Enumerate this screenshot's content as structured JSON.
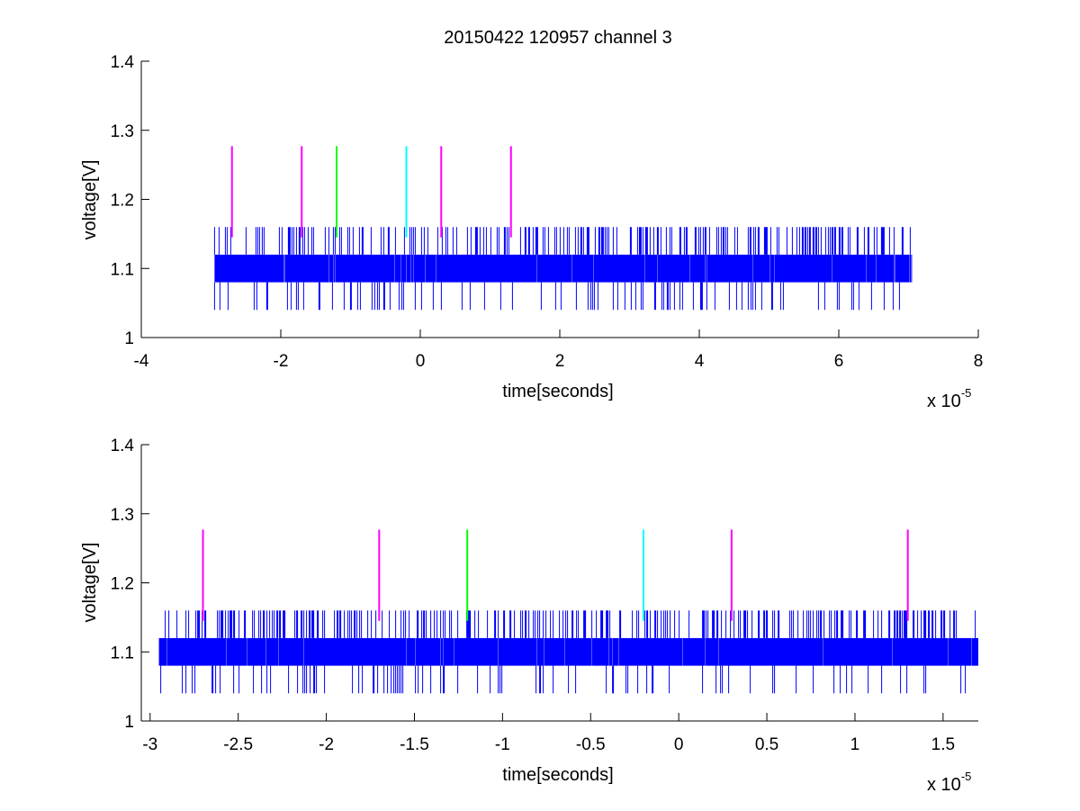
{
  "title": "20150422 120957 channel 3",
  "colors": {
    "signal": "#0000ff",
    "magenta": "#ff00ff",
    "green": "#00ff00",
    "cyan": "#00ffff",
    "axis": "#000000",
    "background": "#ffffff"
  },
  "chart_data": [
    {
      "type": "line",
      "xlabel": "time[seconds]",
      "ylabel": "voltage[V]",
      "x_scale_label": "x 10",
      "x_scale_exponent": "-5",
      "xlim": [
        -4,
        8
      ],
      "ylim": [
        1,
        1.4
      ],
      "xticks": [
        -4,
        -2,
        0,
        2,
        4,
        6,
        8
      ],
      "xtick_labels": [
        "-4",
        "-2",
        "0",
        "2",
        "4",
        "6",
        "8"
      ],
      "yticks": [
        1,
        1.1,
        1.2,
        1.3,
        1.4
      ],
      "ytick_labels": [
        "1",
        "1.1",
        "1.2",
        "1.3",
        "1.4"
      ],
      "grid": false,
      "signal": {
        "x_range": [
          -2.95,
          7.05
        ],
        "band": [
          1.08,
          1.12
        ],
        "high": 1.16,
        "low": 1.04,
        "base": 1.1,
        "color": "#0000ff"
      },
      "markers": [
        {
          "x": -2.7,
          "y_bottom": 1.145,
          "y_top": 1.277,
          "color": "#ff00ff"
        },
        {
          "x": -1.7,
          "y_bottom": 1.145,
          "y_top": 1.277,
          "color": "#ff00ff"
        },
        {
          "x": -1.2,
          "y_bottom": 1.145,
          "y_top": 1.277,
          "color": "#00ff00"
        },
        {
          "x": -0.2,
          "y_bottom": 1.145,
          "y_top": 1.277,
          "color": "#00ffff"
        },
        {
          "x": 0.3,
          "y_bottom": 1.145,
          "y_top": 1.277,
          "color": "#ff00ff"
        },
        {
          "x": 1.3,
          "y_bottom": 1.145,
          "y_top": 1.277,
          "color": "#ff00ff"
        }
      ]
    },
    {
      "type": "line",
      "xlabel": "time[seconds]",
      "ylabel": "voltage[V]",
      "x_scale_label": "x 10",
      "x_scale_exponent": "-5",
      "xlim": [
        -3.05,
        1.7
      ],
      "ylim": [
        1,
        1.4
      ],
      "xticks": [
        -3,
        -2.5,
        -2,
        -1.5,
        -1,
        -0.5,
        0,
        0.5,
        1,
        1.5
      ],
      "xtick_labels": [
        "-3",
        "-2.5",
        "-2",
        "-1.5",
        "-1",
        "-0.5",
        "0",
        "0.5",
        "1",
        "1.5"
      ],
      "yticks": [
        1,
        1.1,
        1.2,
        1.3,
        1.4
      ],
      "ytick_labels": [
        "1",
        "1.1",
        "1.2",
        "1.3",
        "1.4"
      ],
      "grid": false,
      "signal": {
        "x_range": [
          -2.95,
          1.7
        ],
        "band": [
          1.08,
          1.12
        ],
        "high": 1.16,
        "low": 1.04,
        "base": 1.1,
        "color": "#0000ff"
      },
      "markers": [
        {
          "x": -2.7,
          "y_bottom": 1.145,
          "y_top": 1.277,
          "color": "#ff00ff"
        },
        {
          "x": -1.7,
          "y_bottom": 1.145,
          "y_top": 1.277,
          "color": "#ff00ff"
        },
        {
          "x": -1.2,
          "y_bottom": 1.145,
          "y_top": 1.277,
          "color": "#00ff00"
        },
        {
          "x": -0.2,
          "y_bottom": 1.145,
          "y_top": 1.277,
          "color": "#00ffff"
        },
        {
          "x": 0.3,
          "y_bottom": 1.145,
          "y_top": 1.277,
          "color": "#ff00ff"
        },
        {
          "x": 1.3,
          "y_bottom": 1.145,
          "y_top": 1.277,
          "color": "#ff00ff"
        }
      ]
    }
  ]
}
